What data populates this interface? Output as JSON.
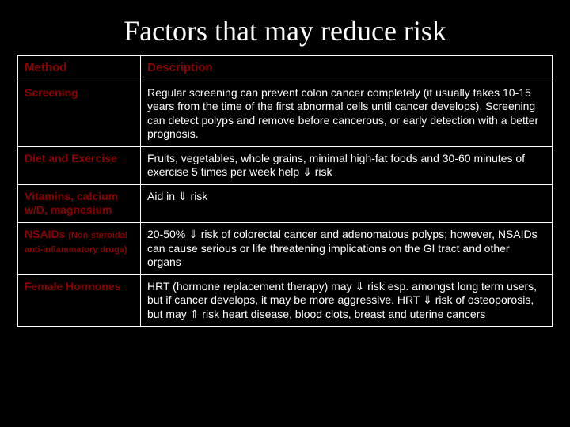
{
  "title": "Factors that may reduce risk",
  "headers": {
    "method": "Method",
    "description": "Description"
  },
  "rows": [
    {
      "method": "Screening",
      "method_sub": "",
      "description": "Regular screening can prevent colon cancer completely (it usually takes 10-15 years from the time of the first abnormal cells until cancer develops).  Screening can detect polyps and remove before cancerous, or early detection with a better prognosis."
    },
    {
      "method": "Diet and Exercise",
      "method_sub": "",
      "description": "Fruits, vegetables, whole grains, minimal high-fat foods and 30-60 minutes of exercise 5 times per week help ⇓ risk"
    },
    {
      "method": "Vitamins, calcium w/D, magnesium",
      "method_sub": "",
      "description": "Aid in ⇓ risk"
    },
    {
      "method": "NSAIDs ",
      "method_sub": "(Non-steroidal anti-inflammatory drugs)",
      "description": "20-50% ⇓ risk of colorectal cancer and adenomatous polyps; however, NSAIDs  can cause serious or life threatening implications on the GI tract and other organs"
    },
    {
      "method": "Female Hormones",
      "method_sub": "",
      "description": "HRT (hormone replacement therapy)  may ⇓ risk esp. amongst long term users, but if cancer develops, it may be more aggressive.  HRT ⇓ risk of osteoporosis, but may ⇑ risk heart disease, blood clots, breast and uterine cancers"
    }
  ],
  "colors": {
    "background": "#000000",
    "text": "#ffffff",
    "method_text": "#8b0000",
    "border": "#ffffff"
  }
}
